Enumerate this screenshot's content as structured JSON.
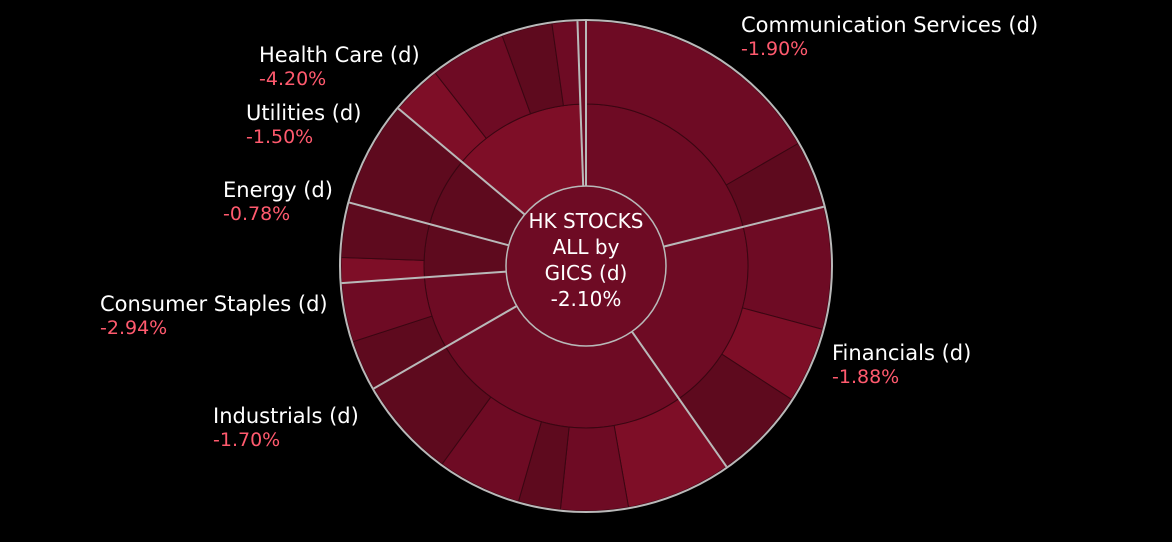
{
  "chart_data": {
    "type": "sunburst",
    "center": {
      "lines": [
        "HK STOCKS",
        "ALL by",
        "GICS (d)"
      ],
      "value": "-2.10%"
    },
    "sectors": [
      {
        "name": "Communication Services (d)",
        "change": "-1.90%"
      },
      {
        "name": "Financials (d)",
        "change": "-1.88%"
      },
      {
        "name": "Industrials (d)",
        "change": "-1.70%"
      },
      {
        "name": "Consumer Staples (d)",
        "change": "-2.94%"
      },
      {
        "name": "Energy (d)",
        "change": "-0.78%"
      },
      {
        "name": "Utilities (d)",
        "change": "-1.50%"
      },
      {
        "name": "Health Care (d)",
        "change": "-4.20%"
      }
    ],
    "colors": {
      "background": "#000000",
      "fill_dark": "#5e0a1e",
      "fill_mid": "#6e0b24",
      "fill_bright": "#7e0e27",
      "divider": "#b9b9b9",
      "negative_text": "#ff5a6e",
      "label_text": "#ffffff"
    }
  }
}
